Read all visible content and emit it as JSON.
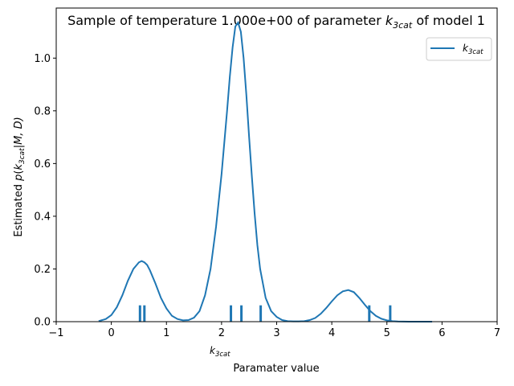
{
  "chart_data": {
    "type": "line",
    "title_main": "Sample of temperature 1.000e+00 of parameter ",
    "title_k": "k",
    "title_sub": "3cat",
    "title_tail": " of model 1",
    "xlabel": "Paramater value",
    "ylabel_main": "Estimated ",
    "ylabel_p": "p",
    "ylabel_paren_open": "(",
    "ylabel_k": "k",
    "ylabel_sub": "3cat",
    "ylabel_rest": "|M, D)",
    "axis_note_k": "k",
    "axis_note_sub": "3cat",
    "xlim": [
      -1,
      7
    ],
    "ylim": [
      0,
      1.19
    ],
    "x_ticks": [
      -1,
      0,
      1,
      2,
      3,
      4,
      5,
      6,
      7
    ],
    "x_tick_labels": [
      "−1",
      "0",
      "1",
      "2",
      "3",
      "4",
      "5",
      "6",
      "7"
    ],
    "y_ticks": [
      0,
      0.2,
      0.4,
      0.6,
      0.8,
      1.0
    ],
    "y_tick_labels": [
      "0.0",
      "0.2",
      "0.4",
      "0.6",
      "0.8",
      "1.0"
    ],
    "grid": false,
    "legend_position": "top-right",
    "series": [
      {
        "name_k": "k",
        "name_sub": "3cat",
        "color": "#1f77b4",
        "x": [
          -0.23,
          -0.1,
          0.0,
          0.1,
          0.2,
          0.3,
          0.4,
          0.5,
          0.55,
          0.6,
          0.65,
          0.7,
          0.8,
          0.9,
          1.0,
          1.1,
          1.2,
          1.3,
          1.4,
          1.5,
          1.6,
          1.7,
          1.8,
          1.9,
          2.0,
          2.05,
          2.1,
          2.15,
          2.2,
          2.25,
          2.3,
          2.35,
          2.4,
          2.45,
          2.5,
          2.55,
          2.6,
          2.65,
          2.7,
          2.8,
          2.9,
          3.0,
          3.1,
          3.2,
          3.3,
          3.4,
          3.5,
          3.6,
          3.7,
          3.8,
          3.9,
          4.0,
          4.1,
          4.2,
          4.3,
          4.4,
          4.5,
          4.6,
          4.7,
          4.8,
          4.9,
          5.0,
          5.1,
          5.2,
          5.3,
          5.4,
          5.5,
          5.6,
          5.7,
          5.82
        ],
        "y": [
          0.002,
          0.01,
          0.025,
          0.055,
          0.1,
          0.155,
          0.2,
          0.225,
          0.23,
          0.225,
          0.215,
          0.195,
          0.145,
          0.09,
          0.05,
          0.022,
          0.01,
          0.005,
          0.006,
          0.015,
          0.04,
          0.1,
          0.2,
          0.36,
          0.56,
          0.68,
          0.8,
          0.93,
          1.04,
          1.12,
          1.135,
          1.1,
          1.0,
          0.86,
          0.7,
          0.55,
          0.41,
          0.29,
          0.2,
          0.09,
          0.04,
          0.018,
          0.006,
          0.002,
          0.001,
          0.001,
          0.002,
          0.006,
          0.014,
          0.03,
          0.052,
          0.077,
          0.1,
          0.115,
          0.12,
          0.112,
          0.09,
          0.064,
          0.04,
          0.022,
          0.011,
          0.005,
          0.002,
          0.0008,
          0.0003,
          0.0001,
          0.0,
          0.0,
          0.0,
          0.0
        ]
      }
    ],
    "rug": [
      0.52,
      0.6,
      2.17,
      2.36,
      2.71,
      4.68,
      5.06
    ],
    "rug_height": 0.062
  }
}
